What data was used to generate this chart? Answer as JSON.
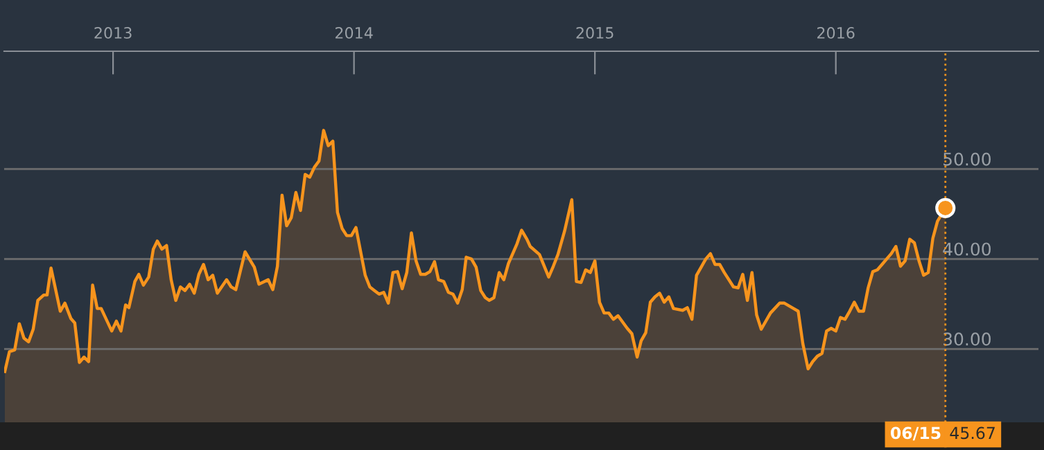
{
  "chart_data": {
    "type": "area",
    "xlim": [
      "2012-07-20",
      "2016-11-03"
    ],
    "xticks": [
      "2013",
      "2014",
      "2015",
      "2016"
    ],
    "ylim": [
      21.85,
      63.1
    ],
    "yticks": [
      {
        "value": 30,
        "label": "30.00"
      },
      {
        "value": 40,
        "label": "40.00"
      },
      {
        "value": 50,
        "label": "50.00"
      }
    ],
    "grid": "y",
    "series": [
      {
        "color": "#f7941d",
        "x": [
          "2012-07-21",
          "2012-07-28",
          "2012-08-05",
          "2012-08-12",
          "2012-08-19",
          "2012-08-26",
          "2012-09-02",
          "2012-09-09",
          "2012-09-18",
          "2012-09-23",
          "2012-09-29",
          "2012-10-13",
          "2012-10-20",
          "2012-10-29",
          "2012-11-04",
          "2012-11-11",
          "2012-11-18",
          "2012-11-25",
          "2012-12-01",
          "2012-12-08",
          "2012-12-14",
          "2012-12-30",
          "2013-01-06",
          "2013-01-13",
          "2013-01-20",
          "2013-01-25",
          "2013-02-03",
          "2013-02-09",
          "2013-02-16",
          "2013-02-24",
          "2013-03-03",
          "2013-03-09",
          "2013-03-16",
          "2013-03-23",
          "2013-03-30",
          "2013-04-06",
          "2013-04-13",
          "2013-04-20",
          "2013-04-27",
          "2013-05-04",
          "2013-05-11",
          "2013-05-18",
          "2013-05-25",
          "2013-06-01",
          "2013-06-08",
          "2013-06-22",
          "2013-06-29",
          "2013-07-06",
          "2013-07-20",
          "2013-08-03",
          "2013-08-10",
          "2013-08-24",
          "2013-08-31",
          "2013-09-07",
          "2013-09-14",
          "2013-09-21",
          "2013-09-28",
          "2013-10-05",
          "2013-10-12",
          "2013-10-19",
          "2013-10-26",
          "2013-11-02",
          "2013-11-09",
          "2013-11-16",
          "2013-11-23",
          "2013-11-30",
          "2013-12-07",
          "2013-12-14",
          "2013-12-21",
          "2013-12-28",
          "2014-01-04",
          "2014-01-18",
          "2014-01-25",
          "2014-02-01",
          "2014-02-08",
          "2014-02-15",
          "2014-02-22",
          "2014-03-01",
          "2014-03-08",
          "2014-03-15",
          "2014-03-22",
          "2014-03-29",
          "2014-04-05",
          "2014-04-12",
          "2014-04-19",
          "2014-04-26",
          "2014-05-03",
          "2014-05-09",
          "2014-05-17",
          "2014-05-24",
          "2014-05-31",
          "2014-06-07",
          "2014-06-14",
          "2014-06-20",
          "2014-06-28",
          "2014-07-05",
          "2014-07-12",
          "2014-07-19",
          "2014-07-25",
          "2014-08-01",
          "2014-08-09",
          "2014-08-16",
          "2014-08-23",
          "2014-09-05",
          "2014-09-12",
          "2014-09-20",
          "2014-09-25",
          "2014-10-09",
          "2014-10-23",
          "2014-10-30",
          "2014-11-06",
          "2014-11-16",
          "2014-11-27",
          "2014-12-04",
          "2014-12-11",
          "2014-12-18",
          "2014-12-25",
          "2015-01-01",
          "2015-01-08",
          "2015-01-15",
          "2015-01-22",
          "2015-01-29",
          "2015-02-05",
          "2015-02-19",
          "2015-02-26",
          "2015-03-06",
          "2015-03-12",
          "2015-03-19",
          "2015-03-26",
          "2015-04-02",
          "2015-04-09",
          "2015-04-16",
          "2015-04-23",
          "2015-04-30",
          "2015-05-14",
          "2015-05-21",
          "2015-05-28",
          "2015-06-04",
          "2015-06-11",
          "2015-06-18",
          "2015-06-25",
          "2015-07-02",
          "2015-07-09",
          "2015-07-16",
          "2015-07-30",
          "2015-08-06",
          "2015-08-13",
          "2015-08-20",
          "2015-08-27",
          "2015-09-03",
          "2015-09-10",
          "2015-09-24",
          "2015-10-08",
          "2015-10-15",
          "2015-10-29",
          "2015-11-05",
          "2015-11-12",
          "2015-11-20",
          "2015-11-27",
          "2015-12-04",
          "2015-12-11",
          "2015-12-18",
          "2015-12-25",
          "2016-01-01",
          "2016-01-08",
          "2016-01-15",
          "2016-01-22",
          "2016-01-29",
          "2016-02-05",
          "2016-02-12",
          "2016-02-19",
          "2016-02-26",
          "2016-03-04",
          "2016-03-11",
          "2016-03-18",
          "2016-03-25",
          "2016-04-01",
          "2016-04-08",
          "2016-04-15",
          "2016-04-22",
          "2016-04-29",
          "2016-05-06",
          "2016-05-13",
          "2016-05-20",
          "2016-05-27",
          "2016-06-03",
          "2016-06-15"
        ],
        "values": [
          27.5,
          29.7,
          29.9,
          32.8,
          31.2,
          30.8,
          32.2,
          35.4,
          36.0,
          36.0,
          39.0,
          34.2,
          35.1,
          33.4,
          32.9,
          28.5,
          29.1,
          28.6,
          37.1,
          34.5,
          34.5,
          32.0,
          33.1,
          32.0,
          34.9,
          34.6,
          37.5,
          38.3,
          37.1,
          38.0,
          41.1,
          42.0,
          41.1,
          41.5,
          37.7,
          35.4,
          36.9,
          36.5,
          37.2,
          36.2,
          38.3,
          39.4,
          37.7,
          38.2,
          36.2,
          37.7,
          36.9,
          36.6,
          40.8,
          39.1,
          37.2,
          37.7,
          36.6,
          39.2,
          47.1,
          43.7,
          44.6,
          47.4,
          45.4,
          49.4,
          49.1,
          50.2,
          50.9,
          54.3,
          52.6,
          53.1,
          45.2,
          43.4,
          42.6,
          42.6,
          43.5,
          38.2,
          36.9,
          36.5,
          36.1,
          36.3,
          35.1,
          38.5,
          38.6,
          36.7,
          38.5,
          42.9,
          39.8,
          38.3,
          38.3,
          38.6,
          39.7,
          37.7,
          37.5,
          36.3,
          36.1,
          35.1,
          36.6,
          40.2,
          40.0,
          39.1,
          36.5,
          35.7,
          35.4,
          35.7,
          38.5,
          37.7,
          39.5,
          41.7,
          43.2,
          42.2,
          41.4,
          40.5,
          38.0,
          39.2,
          40.5,
          43.1,
          46.6,
          37.5,
          37.4,
          38.8,
          38.5,
          39.8,
          35.2,
          34.0,
          34.0,
          33.3,
          33.7,
          32.3,
          31.7,
          29.1,
          30.9,
          31.8,
          35.2,
          35.8,
          36.2,
          35.2,
          35.8,
          34.5,
          34.3,
          34.6,
          33.3,
          38.2,
          39.1,
          40.0,
          40.6,
          39.4,
          39.4,
          38.5,
          36.9,
          36.8,
          38.3,
          35.4,
          38.5,
          33.8,
          32.2,
          34.0,
          35.1,
          35.1,
          34.5,
          34.2,
          30.6,
          27.8,
          28.6,
          29.2,
          29.5,
          32.0,
          32.3,
          32.0,
          33.5,
          33.3,
          34.2,
          35.2,
          34.2,
          34.2,
          36.8,
          38.6,
          38.8,
          39.4,
          40.0,
          40.6,
          41.4,
          39.2,
          39.8,
          42.2,
          41.8,
          39.8,
          38.2,
          38.5,
          42.3,
          44.2,
          45.67
        ]
      }
    ],
    "ref_lines": [
      {
        "axis": "x",
        "value": "2016-06-15",
        "label": "06/15",
        "color": "#f7941d",
        "line_style": "dotted"
      }
    ],
    "annotations": [
      "45.67"
    ]
  }
}
